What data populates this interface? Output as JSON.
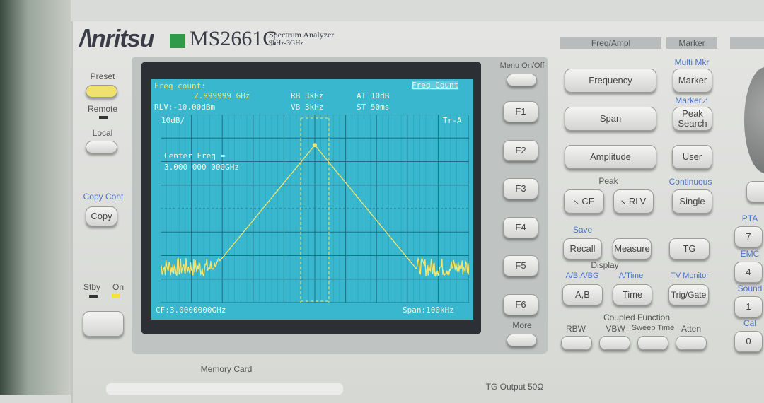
{
  "brand": {
    "logo": "Anritsu",
    "model": "MS2661C",
    "subtitle": "Spectrum Analyzer",
    "range": "9kHz-3GHz"
  },
  "left": {
    "preset": "Preset",
    "remote": "Remote",
    "local": "Local",
    "copy_cont": "Copy Cont",
    "copy": "Copy",
    "stby": "Stby",
    "on": "On"
  },
  "screen": {
    "freq_count_label": "Freq count:",
    "freq_count_value": "2.999999 GHz",
    "rlv": "RLV:-10.00dBm",
    "rb": "RB 3kHz",
    "vb": "VB 3kHz",
    "at": "AT 10dB",
    "st": "ST 50ms",
    "mode": "Freq Count",
    "scale": "10dB/",
    "trace": "Tr-A",
    "center_label": "Center Freq =",
    "center_value": "3.000 000 000GHz",
    "cf": "CF:3.0000000GHz",
    "span": "Span:100kHz"
  },
  "chart_data": {
    "type": "line",
    "center_freq_ghz": 3.0,
    "span_khz": 100,
    "ref_level_dbm": -10,
    "scale_db_per_div": 10,
    "divisions_x": 10,
    "divisions_y": 8,
    "peak_dbm": -23,
    "noise_floor_dbm": -75,
    "trace_color": "#f5e46a",
    "grid": true
  },
  "softkeys": {
    "menu": "Menu On/Off",
    "f": [
      "F1",
      "F2",
      "F3",
      "F4",
      "F5",
      "F6"
    ],
    "more": "More"
  },
  "freq_ampl": {
    "header": "Freq/Ampl",
    "frequency": "Frequency",
    "span": "Span",
    "amplitude": "Amplitude",
    "peak": "Peak",
    "cf": "⦣ CF",
    "rlv": "⦣ RLV"
  },
  "marker": {
    "header": "Marker",
    "multi": "Multi Mkr",
    "marker": "Marker",
    "marker_delta": "Marker⊿",
    "peak_search": "Peak Search",
    "user": "User",
    "continuous": "Continuous",
    "single": "Single"
  },
  "lower": {
    "save": "Save",
    "recall": "Recall",
    "measure": "Measure",
    "tg": "TG",
    "display": "Display",
    "ab_label": "A/B,A/BG",
    "atime": "A/Time",
    "tv": "TV Monitor",
    "ab": "A,B",
    "time": "Time",
    "trig": "Trig/Gate",
    "coupled": "Coupled Function",
    "rbw": "RBW",
    "vbw": "VBW",
    "sweep": "Sweep Time",
    "atten": "Atten"
  },
  "keypad": {
    "pta": "PTA",
    "emc": "EMC",
    "sound": "Sound",
    "cal": "Cal",
    "keys": [
      "7",
      "4",
      "1",
      "0"
    ]
  },
  "bottom": {
    "memory_card": "Memory Card",
    "tg_output": "TG Output 50Ω"
  },
  "colors": {
    "screen": "#38b7cf",
    "trace": "#f5e46a",
    "preset": "#f0e070",
    "blue_label": "#4a72c8"
  }
}
